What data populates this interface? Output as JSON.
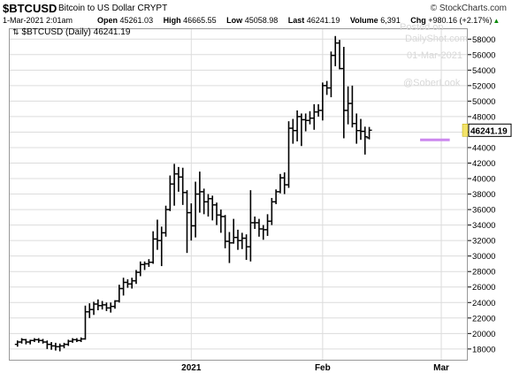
{
  "header": {
    "symbol": "$BTCUSD",
    "description": "Bitcoin to US Dollar",
    "exchange": "CRYPT",
    "brand": "© StockCharts.com",
    "date": "1-Mar-2021 2:01am",
    "open_label": "Open",
    "open": "45261.03",
    "high_label": "High",
    "high": "46665.55",
    "low_label": "Low",
    "low": "45058.98",
    "last_label": "Last",
    "last": "46241.19",
    "volume_label": "Volume",
    "volume": "6,391",
    "chg_label": "Chg",
    "chg": "+980.16 (+2.17%)",
    "chg_arrow": "▲"
  },
  "legend": {
    "icon": "⇅",
    "text": "$BTCUSD (Daily) 46241.19"
  },
  "watermark": {
    "line1": "Posted on",
    "line2": "DailyShot.com",
    "line3": "01-Mar-2021",
    "line4": "@SoberLook"
  },
  "colors": {
    "bars": "#000000",
    "support_line": "#cc88ee",
    "last_price_marker": "#f3e36a",
    "grid": "#dcdcdc"
  },
  "chart_data": {
    "type": "ohlc",
    "title": "$BTCUSD (Daily) 46241.19",
    "x_ticks": [
      "2021",
      "Feb",
      "Mar"
    ],
    "y_ticks": [
      18000,
      20000,
      22000,
      24000,
      26000,
      28000,
      30000,
      32000,
      34000,
      36000,
      38000,
      40000,
      42000,
      44000,
      46000,
      48000,
      50000,
      52000,
      54000,
      56000,
      58000
    ],
    "ylim": [
      16500,
      59400
    ],
    "y_axis_side": "right",
    "grid": true,
    "last_price_label": "46241.19",
    "last_price": 46241.19,
    "horizontal_line": {
      "value": 45000,
      "from_day": 54,
      "to_day": 61
    },
    "days_window": [
      -42,
      64
    ],
    "date_markers": {
      "2021": 0,
      "Feb": 31,
      "Mar": 59
    },
    "bars": [
      {
        "d": -41,
        "o": 18600,
        "h": 19100,
        "l": 18300,
        "c": 18900
      },
      {
        "d": -40,
        "o": 18900,
        "h": 19400,
        "l": 18700,
        "c": 19200
      },
      {
        "d": -39,
        "o": 19200,
        "h": 19300,
        "l": 18600,
        "c": 18900
      },
      {
        "d": -38,
        "o": 18900,
        "h": 19200,
        "l": 18600,
        "c": 19100
      },
      {
        "d": -37,
        "o": 19100,
        "h": 19400,
        "l": 18900,
        "c": 19200
      },
      {
        "d": -36,
        "o": 19200,
        "h": 19400,
        "l": 18800,
        "c": 19100
      },
      {
        "d": -35,
        "o": 19100,
        "h": 19300,
        "l": 18700,
        "c": 18900
      },
      {
        "d": -34,
        "o": 18900,
        "h": 19100,
        "l": 18000,
        "c": 18600
      },
      {
        "d": -33,
        "o": 18600,
        "h": 18900,
        "l": 17900,
        "c": 18400
      },
      {
        "d": -32,
        "o": 18400,
        "h": 18800,
        "l": 17800,
        "c": 18300
      },
      {
        "d": -31,
        "o": 18300,
        "h": 18700,
        "l": 17700,
        "c": 18400
      },
      {
        "d": -30,
        "o": 18400,
        "h": 18800,
        "l": 18100,
        "c": 18600
      },
      {
        "d": -29,
        "o": 18600,
        "h": 19200,
        "l": 18400,
        "c": 19000
      },
      {
        "d": -28,
        "o": 19000,
        "h": 19400,
        "l": 18800,
        "c": 19200
      },
      {
        "d": -27,
        "o": 19200,
        "h": 19400,
        "l": 18900,
        "c": 19100
      },
      {
        "d": -26,
        "o": 19100,
        "h": 19500,
        "l": 18900,
        "c": 19300
      },
      {
        "d": -25,
        "o": 19300,
        "h": 23600,
        "l": 19200,
        "c": 22800
      },
      {
        "d": -24,
        "o": 22800,
        "h": 23900,
        "l": 22000,
        "c": 23100
      },
      {
        "d": -23,
        "o": 23100,
        "h": 24100,
        "l": 22400,
        "c": 23800
      },
      {
        "d": -22,
        "o": 23800,
        "h": 24400,
        "l": 23000,
        "c": 23600
      },
      {
        "d": -21,
        "o": 23600,
        "h": 24200,
        "l": 23100,
        "c": 23700
      },
      {
        "d": -20,
        "o": 23700,
        "h": 24000,
        "l": 22900,
        "c": 23300
      },
      {
        "d": -19,
        "o": 23300,
        "h": 24000,
        "l": 22700,
        "c": 23500
      },
      {
        "d": -18,
        "o": 23500,
        "h": 24300,
        "l": 23200,
        "c": 24200
      },
      {
        "d": -17,
        "o": 24200,
        "h": 26300,
        "l": 24000,
        "c": 25800
      },
      {
        "d": -16,
        "o": 25800,
        "h": 27200,
        "l": 24900,
        "c": 26600
      },
      {
        "d": -15,
        "o": 26600,
        "h": 27000,
        "l": 25900,
        "c": 26400
      },
      {
        "d": -14,
        "o": 26400,
        "h": 27200,
        "l": 25800,
        "c": 26800
      },
      {
        "d": -13,
        "o": 26800,
        "h": 28200,
        "l": 26400,
        "c": 27900
      },
      {
        "d": -12,
        "o": 27900,
        "h": 29300,
        "l": 27400,
        "c": 28900
      },
      {
        "d": -11,
        "o": 28900,
        "h": 29300,
        "l": 28200,
        "c": 29000
      },
      {
        "d": -10,
        "o": 29000,
        "h": 29600,
        "l": 28600,
        "c": 29200
      },
      {
        "d": -9,
        "o": 29200,
        "h": 33200,
        "l": 29000,
        "c": 32200
      },
      {
        "d": -8,
        "o": 32200,
        "h": 34700,
        "l": 30800,
        "c": 32000
      },
      {
        "d": -7,
        "o": 32000,
        "h": 33800,
        "l": 28700,
        "c": 33000
      },
      {
        "d": -6,
        "o": 33000,
        "h": 36500,
        "l": 32500,
        "c": 36000
      },
      {
        "d": -5,
        "o": 36000,
        "h": 40400,
        "l": 35800,
        "c": 39300
      },
      {
        "d": -4,
        "o": 39300,
        "h": 41900,
        "l": 36500,
        "c": 40600
      },
      {
        "d": -3,
        "o": 40600,
        "h": 41500,
        "l": 38300,
        "c": 40200
      },
      {
        "d": -2,
        "o": 40200,
        "h": 41400,
        "l": 36600,
        "c": 38200
      },
      {
        "d": -1,
        "o": 38200,
        "h": 38500,
        "l": 30400,
        "c": 35600
      },
      {
        "d": 0,
        "o": 35600,
        "h": 36800,
        "l": 32000,
        "c": 33900
      },
      {
        "d": 1,
        "o": 33900,
        "h": 39600,
        "l": 32400,
        "c": 38000
      },
      {
        "d": 2,
        "o": 38000,
        "h": 40900,
        "l": 35600,
        "c": 38300
      },
      {
        "d": 3,
        "o": 38300,
        "h": 38700,
        "l": 35400,
        "c": 37000
      },
      {
        "d": 4,
        "o": 37000,
        "h": 38000,
        "l": 35100,
        "c": 37400
      },
      {
        "d": 5,
        "o": 37400,
        "h": 37800,
        "l": 34600,
        "c": 36600
      },
      {
        "d": 6,
        "o": 36600,
        "h": 36900,
        "l": 34000,
        "c": 35300
      },
      {
        "d": 7,
        "o": 35300,
        "h": 36000,
        "l": 33000,
        "c": 35100
      },
      {
        "d": 8,
        "o": 35100,
        "h": 35300,
        "l": 31000,
        "c": 31900
      },
      {
        "d": 9,
        "o": 31900,
        "h": 33100,
        "l": 29100,
        "c": 31700
      },
      {
        "d": 10,
        "o": 31700,
        "h": 34800,
        "l": 31600,
        "c": 32400
      },
      {
        "d": 11,
        "o": 32400,
        "h": 33400,
        "l": 30800,
        "c": 32000
      },
      {
        "d": 12,
        "o": 32000,
        "h": 33000,
        "l": 30900,
        "c": 32300
      },
      {
        "d": 13,
        "o": 32300,
        "h": 32800,
        "l": 29500,
        "c": 31200
      },
      {
        "d": 14,
        "o": 31200,
        "h": 38500,
        "l": 29300,
        "c": 34300
      },
      {
        "d": 15,
        "o": 34300,
        "h": 35100,
        "l": 33500,
        "c": 34300
      },
      {
        "d": 16,
        "o": 34300,
        "h": 34800,
        "l": 32500,
        "c": 33500
      },
      {
        "d": 17,
        "o": 33500,
        "h": 34000,
        "l": 32100,
        "c": 33400
      },
      {
        "d": 18,
        "o": 33400,
        "h": 35400,
        "l": 32600,
        "c": 34500
      },
      {
        "d": 19,
        "o": 34500,
        "h": 37500,
        "l": 34000,
        "c": 37000
      },
      {
        "d": 20,
        "o": 37000,
        "h": 38600,
        "l": 36700,
        "c": 38300
      },
      {
        "d": 21,
        "o": 38300,
        "h": 40600,
        "l": 38100,
        "c": 40100
      },
      {
        "d": 22,
        "o": 40100,
        "h": 40800,
        "l": 38000,
        "c": 39200
      },
      {
        "d": 23,
        "o": 39200,
        "h": 47400,
        "l": 38800,
        "c": 46500
      },
      {
        "d": 24,
        "o": 46500,
        "h": 47700,
        "l": 44500,
        "c": 46200
      },
      {
        "d": 25,
        "o": 46200,
        "h": 48800,
        "l": 44800,
        "c": 48000
      },
      {
        "d": 26,
        "o": 48000,
        "h": 48400,
        "l": 44200,
        "c": 47600
      },
      {
        "d": 27,
        "o": 47600,
        "h": 48400,
        "l": 46100,
        "c": 47500
      },
      {
        "d": 28,
        "o": 47500,
        "h": 48700,
        "l": 47000,
        "c": 47800
      },
      {
        "d": 29,
        "o": 47800,
        "h": 49600,
        "l": 46300,
        "c": 48600
      },
      {
        "d": 30,
        "o": 48600,
        "h": 49600,
        "l": 48000,
        "c": 48800
      },
      {
        "d": 31,
        "o": 48800,
        "h": 52400,
        "l": 47500,
        "c": 52000
      },
      {
        "d": 32,
        "o": 52000,
        "h": 52600,
        "l": 50800,
        "c": 51700
      },
      {
        "d": 33,
        "o": 51700,
        "h": 56400,
        "l": 50500,
        "c": 55900
      },
      {
        "d": 34,
        "o": 55900,
        "h": 58400,
        "l": 54500,
        "c": 57500
      },
      {
        "d": 35,
        "o": 57500,
        "h": 57900,
        "l": 54100,
        "c": 54200
      },
      {
        "d": 36,
        "o": 54200,
        "h": 57000,
        "l": 45200,
        "c": 48800
      },
      {
        "d": 37,
        "o": 48800,
        "h": 51900,
        "l": 47000,
        "c": 49700
      },
      {
        "d": 38,
        "o": 49700,
        "h": 52000,
        "l": 46600,
        "c": 47100
      },
      {
        "d": 39,
        "o": 47100,
        "h": 48400,
        "l": 44500,
        "c": 46200
      },
      {
        "d": 40,
        "o": 46200,
        "h": 47700,
        "l": 45000,
        "c": 46100
      },
      {
        "d": 41,
        "o": 46100,
        "h": 46700,
        "l": 43100,
        "c": 45400
      },
      {
        "d": 42,
        "o": 45261.03,
        "h": 46665.55,
        "l": 45058.98,
        "c": 46241.19
      }
    ]
  }
}
